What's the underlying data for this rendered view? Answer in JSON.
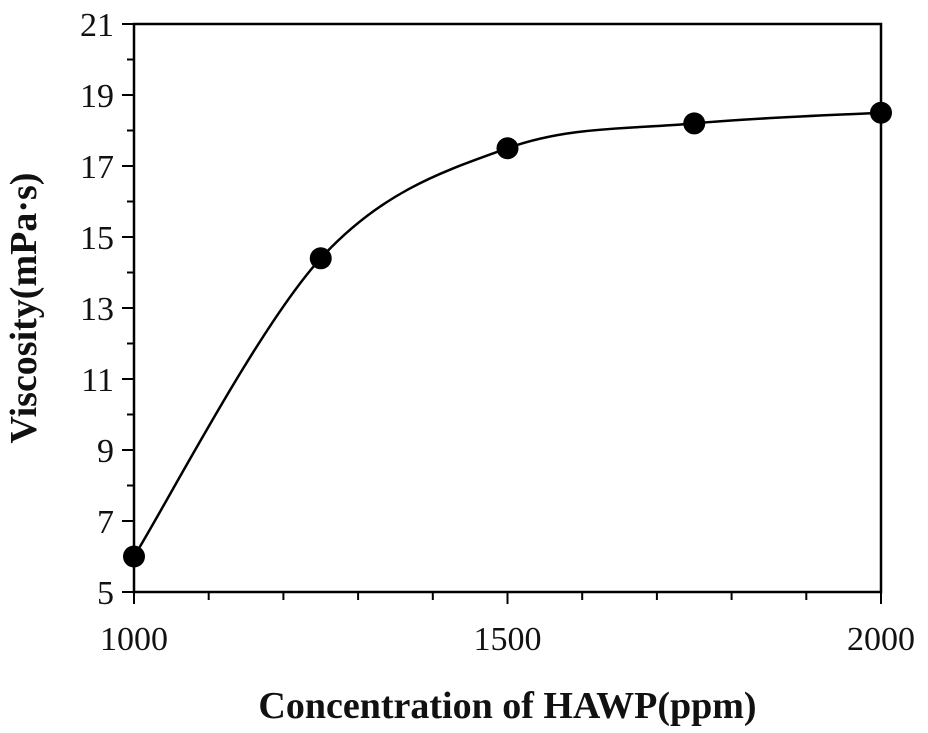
{
  "chart_data": {
    "type": "scatter",
    "title": "",
    "xlabel": "Concentration of HAWP(ppm)",
    "ylabel": "Viscosity(mPa·s)",
    "xlim": [
      1000,
      2000
    ],
    "ylim": [
      5,
      21
    ],
    "x_ticks": [
      1000,
      1500,
      2000
    ],
    "x_tick_labels": [
      "1000",
      "1500",
      "2000"
    ],
    "x_minor_ticks": [
      1100,
      1200,
      1300,
      1400,
      1600,
      1700,
      1800,
      1900
    ],
    "y_ticks": [
      5,
      7,
      9,
      11,
      13,
      15,
      17,
      19,
      21
    ],
    "y_tick_labels": [
      "5",
      "7",
      "9",
      "11",
      "13",
      "15",
      "17",
      "19",
      "21"
    ],
    "y_minor_ticks": [
      6,
      8,
      10,
      12,
      14,
      16,
      18,
      20
    ],
    "grid": false,
    "legend": "none",
    "series": [
      {
        "x": [
          1000,
          1250,
          1500,
          1750,
          2000
        ],
        "y": [
          6.0,
          14.4,
          17.5,
          18.2,
          18.5
        ],
        "marker": "filled-circle",
        "line": "smooth",
        "color": "#000000"
      }
    ]
  }
}
